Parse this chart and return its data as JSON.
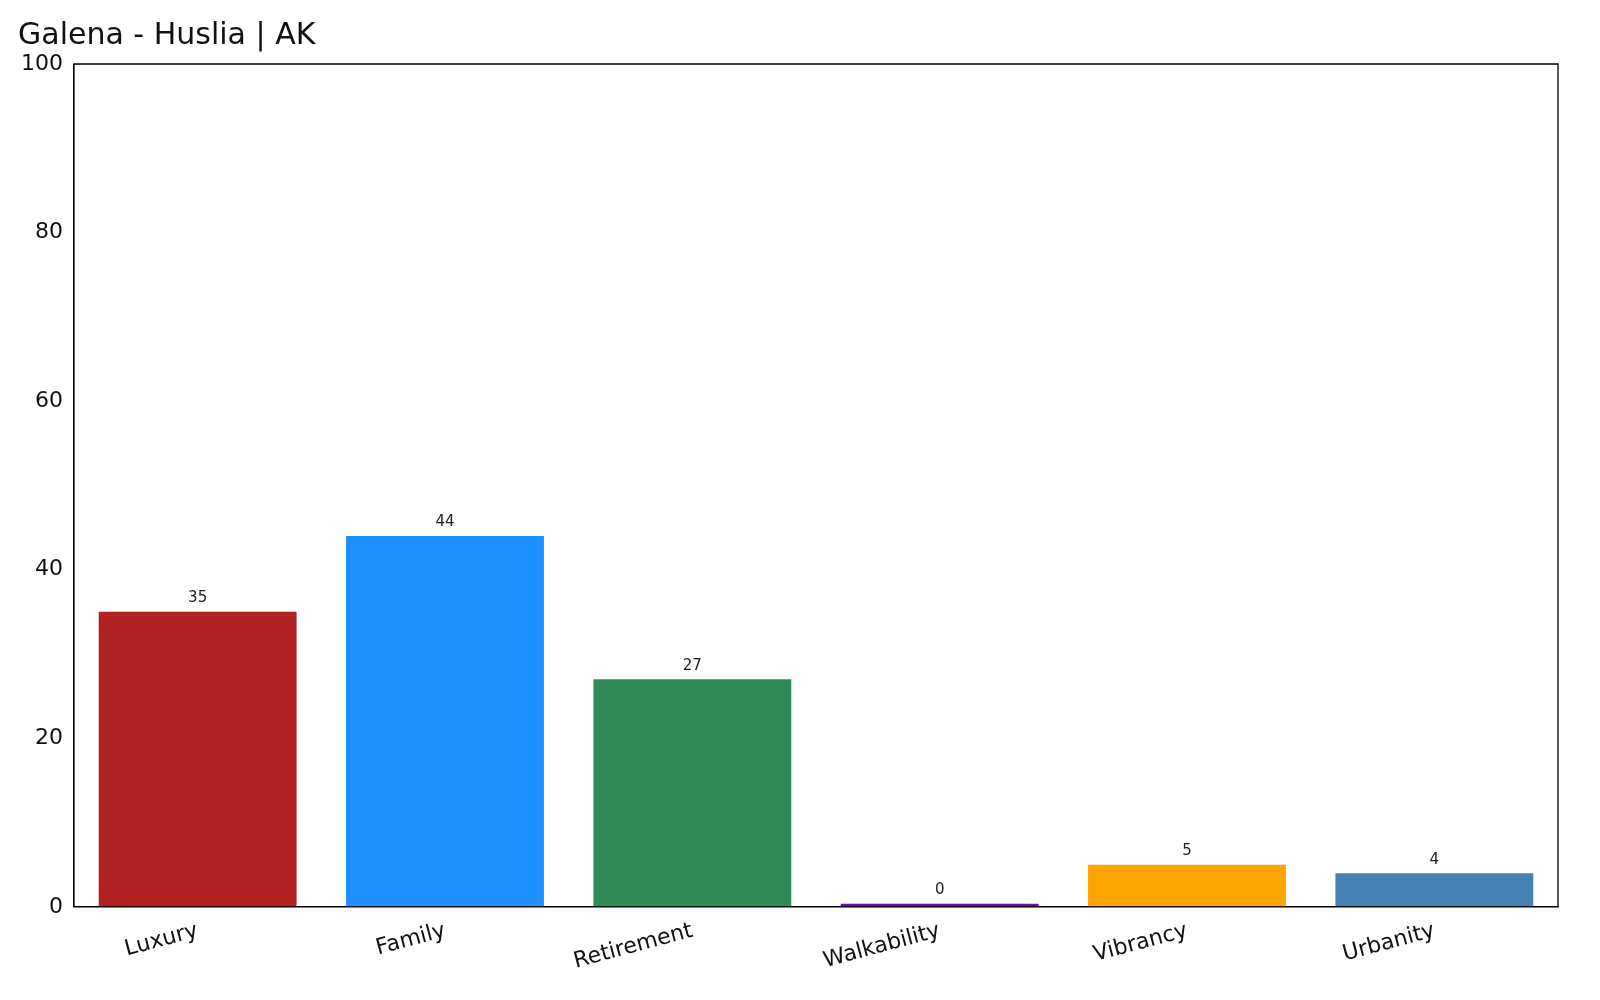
{
  "chart_data": {
    "type": "bar",
    "title": "Galena - Huslia | AK",
    "categories": [
      "Luxury",
      "Family",
      "Retirement",
      "Walkability",
      "Vibrancy",
      "Urbanity"
    ],
    "values": [
      35,
      44,
      27,
      0,
      5,
      4
    ],
    "colors": [
      "#b22222",
      "#1e90ff",
      "#2e8b57",
      "#6a0dad",
      "#ffa500",
      "#4682b4"
    ],
    "ylim": [
      0,
      100
    ],
    "yticks": [
      0,
      20,
      40,
      60,
      80,
      100
    ],
    "grid": false,
    "legend": false,
    "data_labels": true
  }
}
